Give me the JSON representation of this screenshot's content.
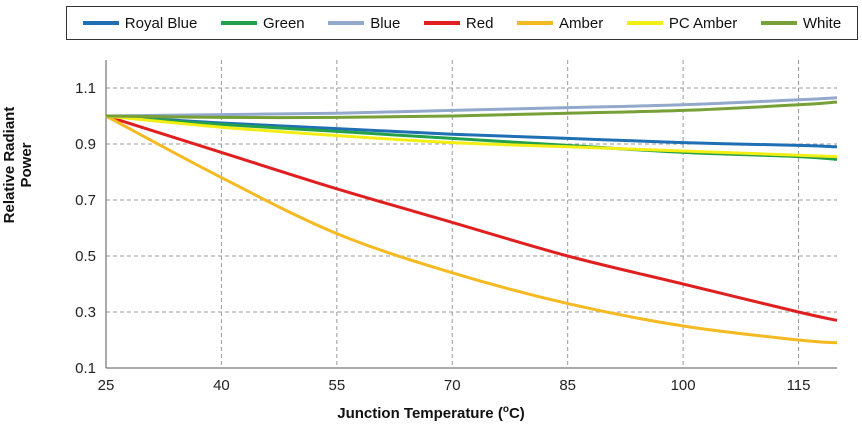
{
  "chart_data": {
    "type": "line",
    "title": "",
    "xlabel": "Junction Temperature (",
    "xlabel_unit_sup": "o",
    "xlabel_unit_tail": "C)",
    "ylabel": "Relative Radiant Power",
    "xlim": [
      25,
      120
    ],
    "ylim": [
      0.1,
      1.2
    ],
    "xticks": [
      25,
      40,
      55,
      70,
      85,
      100,
      115
    ],
    "yticks": [
      0.1,
      0.3,
      0.5,
      0.7,
      0.9,
      1.1
    ],
    "ytick_labels": [
      "0.1",
      "0.3",
      "0.5",
      "0.7",
      "0.9",
      "1.1"
    ],
    "grid": true,
    "legend_position": "top",
    "x": [
      25,
      40,
      55,
      70,
      85,
      100,
      115,
      120
    ],
    "series": [
      {
        "name": "Royal Blue",
        "color": "#1f6fb5",
        "values": [
          1.0,
          0.975,
          0.955,
          0.935,
          0.92,
          0.905,
          0.895,
          0.89
        ]
      },
      {
        "name": "Green",
        "color": "#22a04b",
        "values": [
          1.0,
          0.97,
          0.945,
          0.92,
          0.895,
          0.87,
          0.855,
          0.845
        ]
      },
      {
        "name": "Blue",
        "color": "#93a9cc",
        "values": [
          1.0,
          1.005,
          1.01,
          1.02,
          1.03,
          1.04,
          1.058,
          1.065
        ]
      },
      {
        "name": "Red",
        "color": "#e02020",
        "values": [
          1.0,
          0.87,
          0.74,
          0.62,
          0.5,
          0.4,
          0.3,
          0.27
        ]
      },
      {
        "name": "Amber",
        "color": "#f5b922",
        "values": [
          1.0,
          0.78,
          0.58,
          0.44,
          0.33,
          0.25,
          0.2,
          0.19
        ]
      },
      {
        "name": "PC Amber",
        "color": "#f2ee14",
        "values": [
          1.0,
          0.96,
          0.93,
          0.905,
          0.89,
          0.875,
          0.86,
          0.855
        ]
      },
      {
        "name": "White",
        "color": "#77a038",
        "values": [
          1.0,
          0.995,
          0.995,
          1.0,
          1.01,
          1.02,
          1.04,
          1.05
        ]
      }
    ]
  }
}
